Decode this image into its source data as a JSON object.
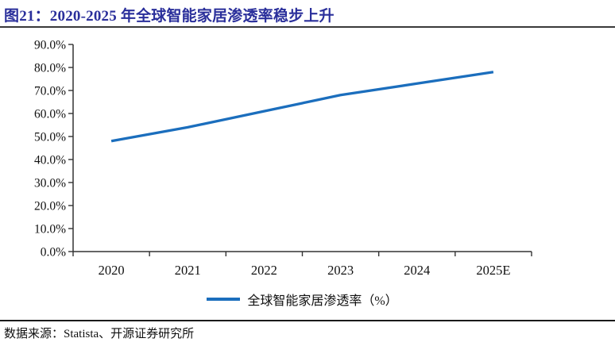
{
  "header": {
    "title": "图21：2020-2025 年全球智能家居渗透率稳步上升"
  },
  "chart_data": {
    "type": "line",
    "title": "图21：2020-2025 年全球智能家居渗透率稳步上升",
    "categories": [
      "2020",
      "2021",
      "2022",
      "2023",
      "2024",
      "2025E"
    ],
    "series": [
      {
        "name": "全球智能家居渗透率（%）",
        "values": [
          48,
          54,
          61,
          68,
          73,
          78
        ]
      }
    ],
    "xlabel": "",
    "ylabel": "",
    "ylim": [
      0,
      90
    ],
    "y_tick_step": 10,
    "y_tick_format": "one_decimal_percent",
    "grid": false,
    "legend_position": "bottom"
  },
  "legend": {
    "label": "全球智能家居渗透率（%）"
  },
  "footer": {
    "source": "数据来源：Statista、开源证券研究所"
  },
  "colors": {
    "title_text": "#2A2F9B",
    "series_line": "#1B6EBD",
    "axis": "#333333",
    "label_text": "#111111"
  }
}
